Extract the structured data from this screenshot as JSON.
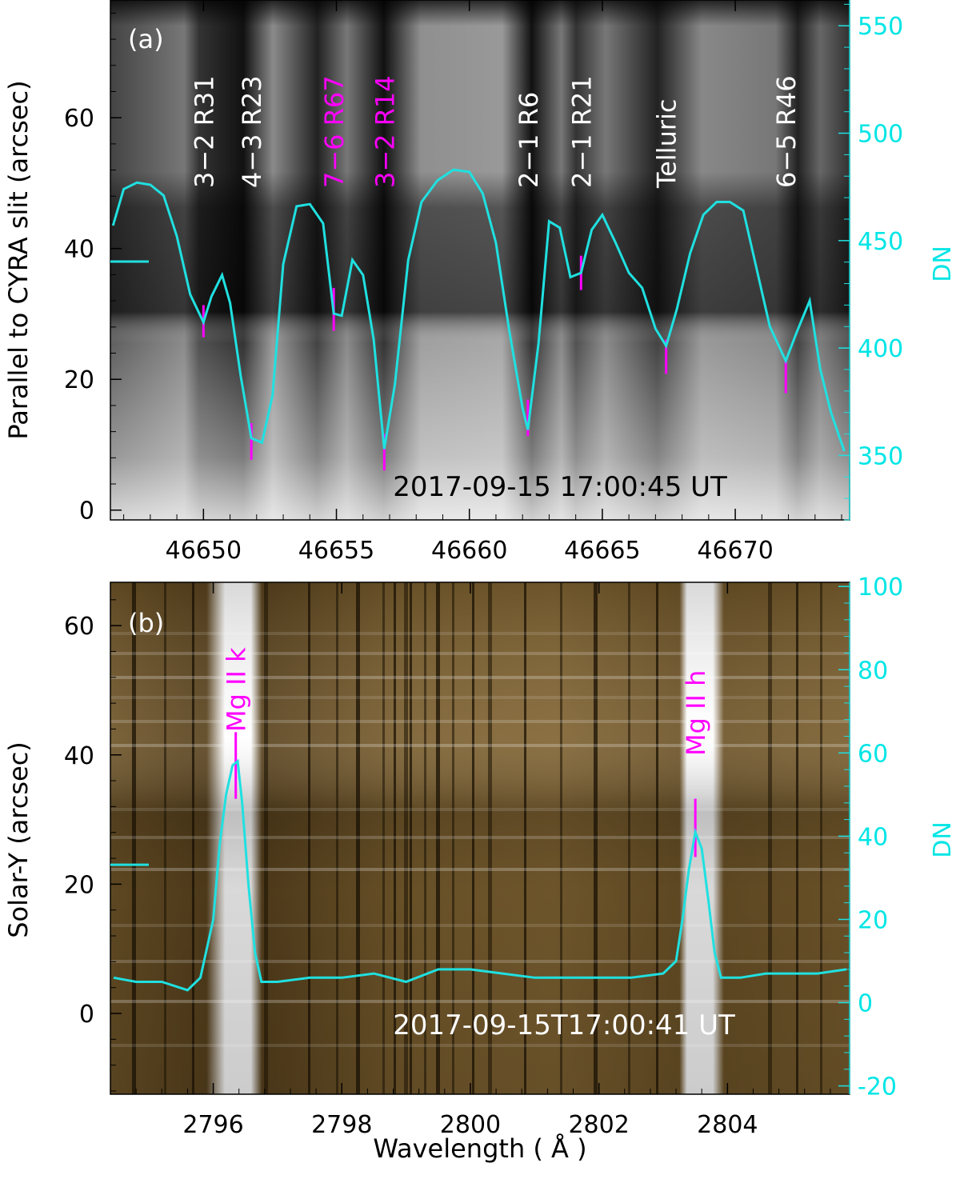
{
  "chart_data": [
    {
      "type": "line",
      "panel_label": "(a)",
      "xlabel": "",
      "ylabel": "Parallel to CYRA slit (arcsec)",
      "y2label": "DN",
      "timestamp": "2017-09-15  17:00:45 UT",
      "xlim": [
        46646.5,
        46674.3
      ],
      "ylim": [
        -1.5,
        78
      ],
      "y2lim": [
        320,
        562
      ],
      "x_ticks": [
        46650,
        46655,
        46660,
        46665,
        46670
      ],
      "y_ticks": [
        0,
        20,
        40,
        60
      ],
      "y2_ticks": [
        350,
        400,
        450,
        500,
        550
      ],
      "marker_y": 38,
      "line_labels": [
        {
          "text": "3−2 R31",
          "x": 46650.0,
          "color": "#ffffff"
        },
        {
          "text": "4−3 R23",
          "x": 46651.8,
          "color": "#ffffff"
        },
        {
          "text": "7−6 R67",
          "x": 46654.9,
          "color": "#ff00ff"
        },
        {
          "text": "3−2 R14",
          "x": 46656.8,
          "color": "#ff00ff"
        },
        {
          "text": "2−1 R6",
          "x": 46662.2,
          "color": "#ffffff"
        },
        {
          "text": "2−1 R21",
          "x": 46664.2,
          "color": "#ffffff"
        },
        {
          "text": "Telluric",
          "x": 46667.4,
          "color": "#ffffff"
        },
        {
          "text": "6−5 R46",
          "x": 46671.9,
          "color": "#ffffff"
        }
      ],
      "line_marks": [
        {
          "x": 46650.0,
          "dn_top": 420,
          "dn_bottom": 405
        },
        {
          "x": 46651.8,
          "dn_top": 365,
          "dn_bottom": 348
        },
        {
          "x": 46654.9,
          "dn_top": 428,
          "dn_bottom": 408
        },
        {
          "x": 46656.8,
          "dn_top": 360,
          "dn_bottom": 343
        },
        {
          "x": 46662.2,
          "dn_top": 376,
          "dn_bottom": 359
        },
        {
          "x": 46664.2,
          "dn_top": 443,
          "dn_bottom": 427
        },
        {
          "x": 46667.4,
          "dn_top": 404,
          "dn_bottom": 388
        },
        {
          "x": 46671.9,
          "dn_top": 394,
          "dn_bottom": 379
        }
      ],
      "series": [
        {
          "color": "#20e0e0",
          "x": [
            46646.6,
            46647.0,
            46647.5,
            46648.0,
            46648.5,
            46649.0,
            46649.5,
            46650.0,
            46650.3,
            46650.7,
            46651.0,
            46651.4,
            46651.8,
            46652.2,
            46652.6,
            46653.0,
            46653.5,
            46654.0,
            46654.5,
            46654.9,
            46655.2,
            46655.6,
            46656.0,
            46656.4,
            46656.8,
            46657.2,
            46657.7,
            46658.2,
            46658.8,
            46659.4,
            46660.0,
            46660.5,
            46661.0,
            46661.5,
            46662.0,
            46662.2,
            46662.6,
            46663.0,
            46663.4,
            46663.8,
            46664.2,
            46664.6,
            46665.0,
            46665.5,
            46666.0,
            46666.5,
            46667.0,
            46667.4,
            46667.8,
            46668.3,
            46668.8,
            46669.3,
            46669.8,
            46670.3,
            46670.8,
            46671.3,
            46671.9,
            46672.3,
            46672.8,
            46673.2,
            46673.6,
            46674.1
          ],
          "values": [
            457,
            474,
            477,
            476,
            471,
            452,
            425,
            412,
            424,
            434,
            421,
            387,
            358,
            356,
            378,
            439,
            466,
            467,
            458,
            416,
            415,
            441,
            434,
            404,
            353,
            383,
            441,
            468,
            478,
            483,
            482,
            472,
            449,
            408,
            372,
            362,
            402,
            459,
            456,
            433,
            435,
            455,
            462,
            449,
            435,
            428,
            409,
            401,
            418,
            444,
            462,
            468,
            468,
            464,
            437,
            410,
            394,
            407,
            422,
            390,
            370,
            352
          ]
        }
      ]
    },
    {
      "type": "line",
      "panel_label": "(b)",
      "xlabel": "Wavelength ( Å )",
      "ylabel": "Solar-Y (arcsec)",
      "y2label": "DN",
      "timestamp": "2017-09-15T17:00:41 UT",
      "xlim": [
        2794.4,
        2805.9
      ],
      "ylim": [
        -12.5,
        66.7
      ],
      "y2lim": [
        -22,
        101
      ],
      "x_ticks": [
        2796,
        2798,
        2800,
        2802,
        2804
      ],
      "y_ticks": [
        0,
        20,
        40,
        60
      ],
      "y2_ticks": [
        -20,
        0,
        20,
        40,
        60,
        80,
        100
      ],
      "marker_y": 23,
      "line_labels": [
        {
          "text": "Mg II k",
          "x": 2796.35,
          "color": "#ff00ff"
        },
        {
          "text": "Mg II h",
          "x": 2803.5,
          "color": "#ff00ff"
        }
      ],
      "line_marks": [
        {
          "x": 2796.35,
          "dn_top": 65,
          "dn_bottom": 49
        },
        {
          "x": 2803.5,
          "dn_top": 49,
          "dn_bottom": 35
        }
      ],
      "series": [
        {
          "color": "#20e0e0",
          "x": [
            2794.45,
            2794.8,
            2795.2,
            2795.6,
            2795.8,
            2796.0,
            2796.1,
            2796.2,
            2796.3,
            2796.38,
            2796.45,
            2796.55,
            2796.65,
            2796.75,
            2797.0,
            2797.5,
            2798.0,
            2798.5,
            2799.0,
            2799.5,
            2800.0,
            2800.5,
            2801.0,
            2801.5,
            2802.0,
            2802.5,
            2803.0,
            2803.2,
            2803.3,
            2803.4,
            2803.5,
            2803.6,
            2803.7,
            2803.8,
            2803.9,
            2804.2,
            2804.6,
            2805.0,
            2805.4,
            2805.85
          ],
          "values": [
            6,
            5,
            5,
            3,
            6,
            20,
            38,
            50,
            57,
            58,
            48,
            28,
            12,
            5,
            5,
            6,
            6,
            7,
            5,
            8,
            8,
            7,
            6,
            6,
            6,
            6,
            7,
            10,
            20,
            32,
            41,
            37,
            25,
            12,
            6,
            6,
            7,
            7,
            7,
            8
          ]
        }
      ]
    }
  ]
}
